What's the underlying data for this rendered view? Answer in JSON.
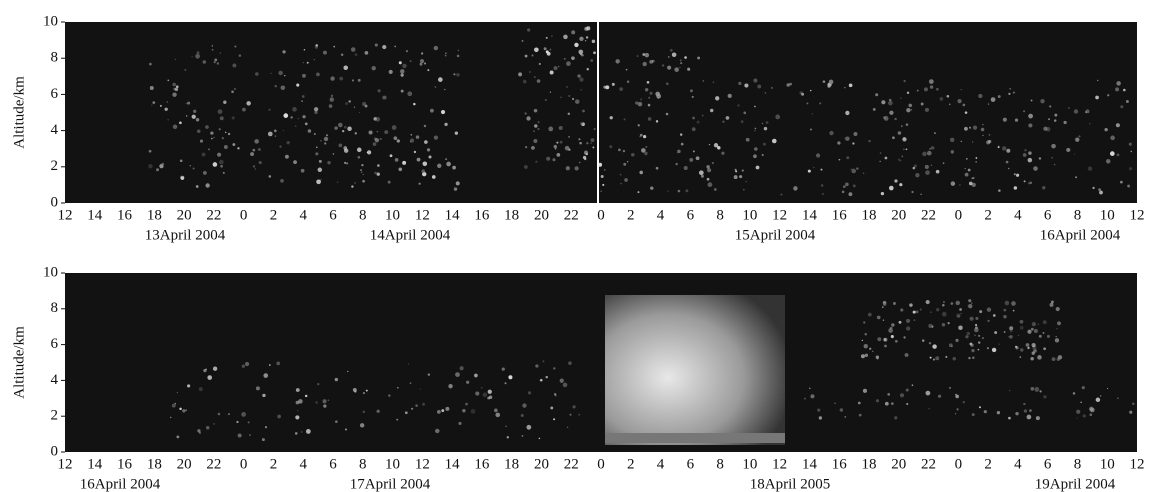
{
  "chart_data": [
    {
      "type": "heatmap",
      "ylabel": "Altitude/km",
      "ylim": [
        0,
        10
      ],
      "yticks": [
        0,
        2,
        4,
        6,
        8,
        10
      ],
      "categories": [
        12,
        14,
        16,
        18,
        20,
        22,
        0,
        2,
        4,
        6,
        8,
        10,
        12,
        14,
        16,
        18,
        20,
        22,
        0,
        2,
        4,
        6,
        8,
        10,
        12,
        14,
        16,
        18,
        20,
        22,
        0,
        2,
        4,
        6,
        8,
        10,
        12
      ],
      "dates": [
        "13April 2004",
        "14April 2004",
        "15April 2004",
        "16April 2004"
      ]
    },
    {
      "type": "heatmap",
      "ylabel": "Altitude/km",
      "ylim": [
        0,
        10
      ],
      "yticks": [
        0,
        2,
        4,
        6,
        8,
        10
      ],
      "categories": [
        12,
        14,
        16,
        18,
        20,
        22,
        0,
        2,
        4,
        6,
        8,
        10,
        12,
        14,
        16,
        18,
        20,
        22,
        0,
        2,
        4,
        6,
        8,
        10,
        12,
        14,
        16,
        18,
        20,
        22,
        0,
        2,
        4,
        6,
        8,
        10,
        12
      ],
      "dates": [
        "16April 2004",
        "17April 2004",
        "18April 2005",
        "19April 2004"
      ]
    }
  ]
}
